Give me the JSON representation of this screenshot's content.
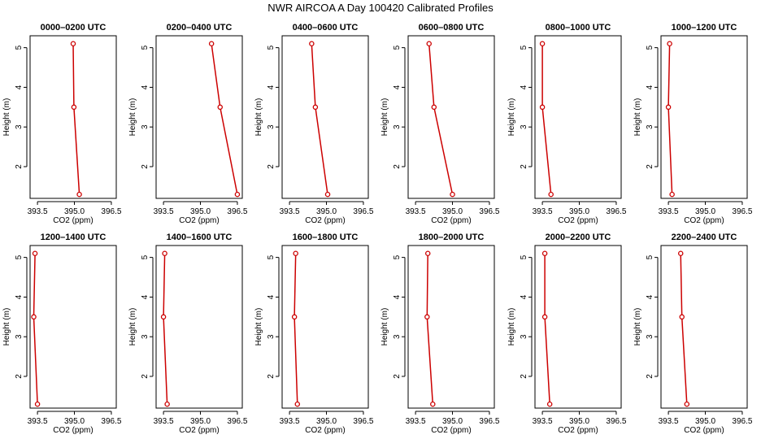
{
  "title": "NWR AIRCOA A  Day 100420  Calibrated Profiles",
  "colors": {
    "line": "#cc0000",
    "axis": "#000000",
    "background": "#ffffff"
  },
  "chart_data": [
    {
      "type": "line",
      "title": "0000–0200 UTC",
      "xlabel": "CO2 (ppm)",
      "ylabel": "Height (m)",
      "xlim": [
        393.2,
        396.7
      ],
      "ylim": [
        1.2,
        5.3
      ],
      "xticks": [
        "393.5",
        "395.0",
        "396.5"
      ],
      "yticks": [
        "2",
        "3",
        "4",
        "5"
      ],
      "x": [
        394.95,
        394.98,
        395.2
      ],
      "y": [
        5.1,
        3.5,
        1.3
      ]
    },
    {
      "type": "line",
      "title": "0200–0400 UTC",
      "xlabel": "CO2 (ppm)",
      "ylabel": "Height (m)",
      "xlim": [
        393.2,
        396.7
      ],
      "ylim": [
        1.2,
        5.3
      ],
      "xticks": [
        "393.5",
        "395.0",
        "396.5"
      ],
      "yticks": [
        "2",
        "3",
        "4",
        "5"
      ],
      "x": [
        395.45,
        395.8,
        396.5
      ],
      "y": [
        5.1,
        3.5,
        1.3
      ]
    },
    {
      "type": "line",
      "title": "0400–0600 UTC",
      "xlabel": "CO2 (ppm)",
      "ylabel": "Height (m)",
      "xlim": [
        393.2,
        396.7
      ],
      "ylim": [
        1.2,
        5.3
      ],
      "xticks": [
        "393.5",
        "395.0",
        "396.5"
      ],
      "yticks": [
        "2",
        "3",
        "4",
        "5"
      ],
      "x": [
        394.4,
        394.55,
        395.05
      ],
      "y": [
        5.1,
        3.5,
        1.3
      ]
    },
    {
      "type": "line",
      "title": "0600–0800 UTC",
      "xlabel": "CO2 (ppm)",
      "ylabel": "Height (m)",
      "xlim": [
        393.2,
        396.7
      ],
      "ylim": [
        1.2,
        5.3
      ],
      "xticks": [
        "393.5",
        "395.0",
        "396.5"
      ],
      "yticks": [
        "2",
        "3",
        "4",
        "5"
      ],
      "x": [
        394.05,
        394.25,
        395.0
      ],
      "y": [
        5.1,
        3.5,
        1.3
      ]
    },
    {
      "type": "line",
      "title": "0800–1000 UTC",
      "xlabel": "CO2 (ppm)",
      "ylabel": "Height (m)",
      "xlim": [
        393.2,
        396.7
      ],
      "ylim": [
        1.2,
        5.3
      ],
      "xticks": [
        "393.5",
        "395.0",
        "396.5"
      ],
      "yticks": [
        "2",
        "3",
        "4",
        "5"
      ],
      "x": [
        393.5,
        393.5,
        393.85
      ],
      "y": [
        5.1,
        3.5,
        1.3
      ]
    },
    {
      "type": "line",
      "title": "1000–1200 UTC",
      "xlabel": "CO2 (ppm)",
      "ylabel": "Height (m)",
      "xlim": [
        393.2,
        396.7
      ],
      "ylim": [
        1.2,
        5.3
      ],
      "xticks": [
        "393.5",
        "395.0",
        "396.5"
      ],
      "yticks": [
        "2",
        "3",
        "4",
        "5"
      ],
      "x": [
        393.55,
        393.5,
        393.65
      ],
      "y": [
        5.1,
        3.5,
        1.3
      ]
    },
    {
      "type": "line",
      "title": "1200–1400 UTC",
      "xlabel": "CO2 (ppm)",
      "ylabel": "Height (m)",
      "xlim": [
        393.2,
        396.7
      ],
      "ylim": [
        1.2,
        5.3
      ],
      "xticks": [
        "393.5",
        "395.0",
        "396.5"
      ],
      "yticks": [
        "2",
        "3",
        "4",
        "5"
      ],
      "x": [
        393.4,
        393.35,
        393.5
      ],
      "y": [
        5.1,
        3.5,
        1.3
      ]
    },
    {
      "type": "line",
      "title": "1400–1600 UTC",
      "xlabel": "CO2 (ppm)",
      "ylabel": "Height (m)",
      "xlim": [
        393.2,
        396.7
      ],
      "ylim": [
        1.2,
        5.3
      ],
      "xticks": [
        "393.5",
        "395.0",
        "396.5"
      ],
      "yticks": [
        "2",
        "3",
        "4",
        "5"
      ],
      "x": [
        393.55,
        393.5,
        393.65
      ],
      "y": [
        5.1,
        3.5,
        1.3
      ]
    },
    {
      "type": "line",
      "title": "1600–1800 UTC",
      "xlabel": "CO2 (ppm)",
      "ylabel": "Height (m)",
      "xlim": [
        393.2,
        396.7
      ],
      "ylim": [
        1.2,
        5.3
      ],
      "xticks": [
        "393.5",
        "395.0",
        "396.5"
      ],
      "yticks": [
        "2",
        "3",
        "4",
        "5"
      ],
      "x": [
        393.75,
        393.7,
        393.82
      ],
      "y": [
        5.1,
        3.5,
        1.3
      ]
    },
    {
      "type": "line",
      "title": "1800–2000 UTC",
      "xlabel": "CO2 (ppm)",
      "ylabel": "Height (m)",
      "xlim": [
        393.2,
        396.7
      ],
      "ylim": [
        1.2,
        5.3
      ],
      "xticks": [
        "393.5",
        "395.0",
        "396.5"
      ],
      "yticks": [
        "2",
        "3",
        "4",
        "5"
      ],
      "x": [
        394.0,
        393.97,
        394.2
      ],
      "y": [
        5.1,
        3.5,
        1.3
      ]
    },
    {
      "type": "line",
      "title": "2000–2200 UTC",
      "xlabel": "CO2 (ppm)",
      "ylabel": "Height (m)",
      "xlim": [
        393.2,
        396.7
      ],
      "ylim": [
        1.2,
        5.3
      ],
      "xticks": [
        "393.5",
        "395.0",
        "396.5"
      ],
      "yticks": [
        "2",
        "3",
        "4",
        "5"
      ],
      "x": [
        393.6,
        393.6,
        393.8
      ],
      "y": [
        5.1,
        3.5,
        1.3
      ]
    },
    {
      "type": "line",
      "title": "2200–2400 UTC",
      "xlabel": "CO2 (ppm)",
      "ylabel": "Height (m)",
      "xlim": [
        393.2,
        396.7
      ],
      "ylim": [
        1.2,
        5.3
      ],
      "xticks": [
        "393.5",
        "395.0",
        "396.5"
      ],
      "yticks": [
        "2",
        "3",
        "4",
        "5"
      ],
      "x": [
        394.0,
        394.05,
        394.25
      ],
      "y": [
        5.1,
        3.5,
        1.3
      ]
    }
  ]
}
